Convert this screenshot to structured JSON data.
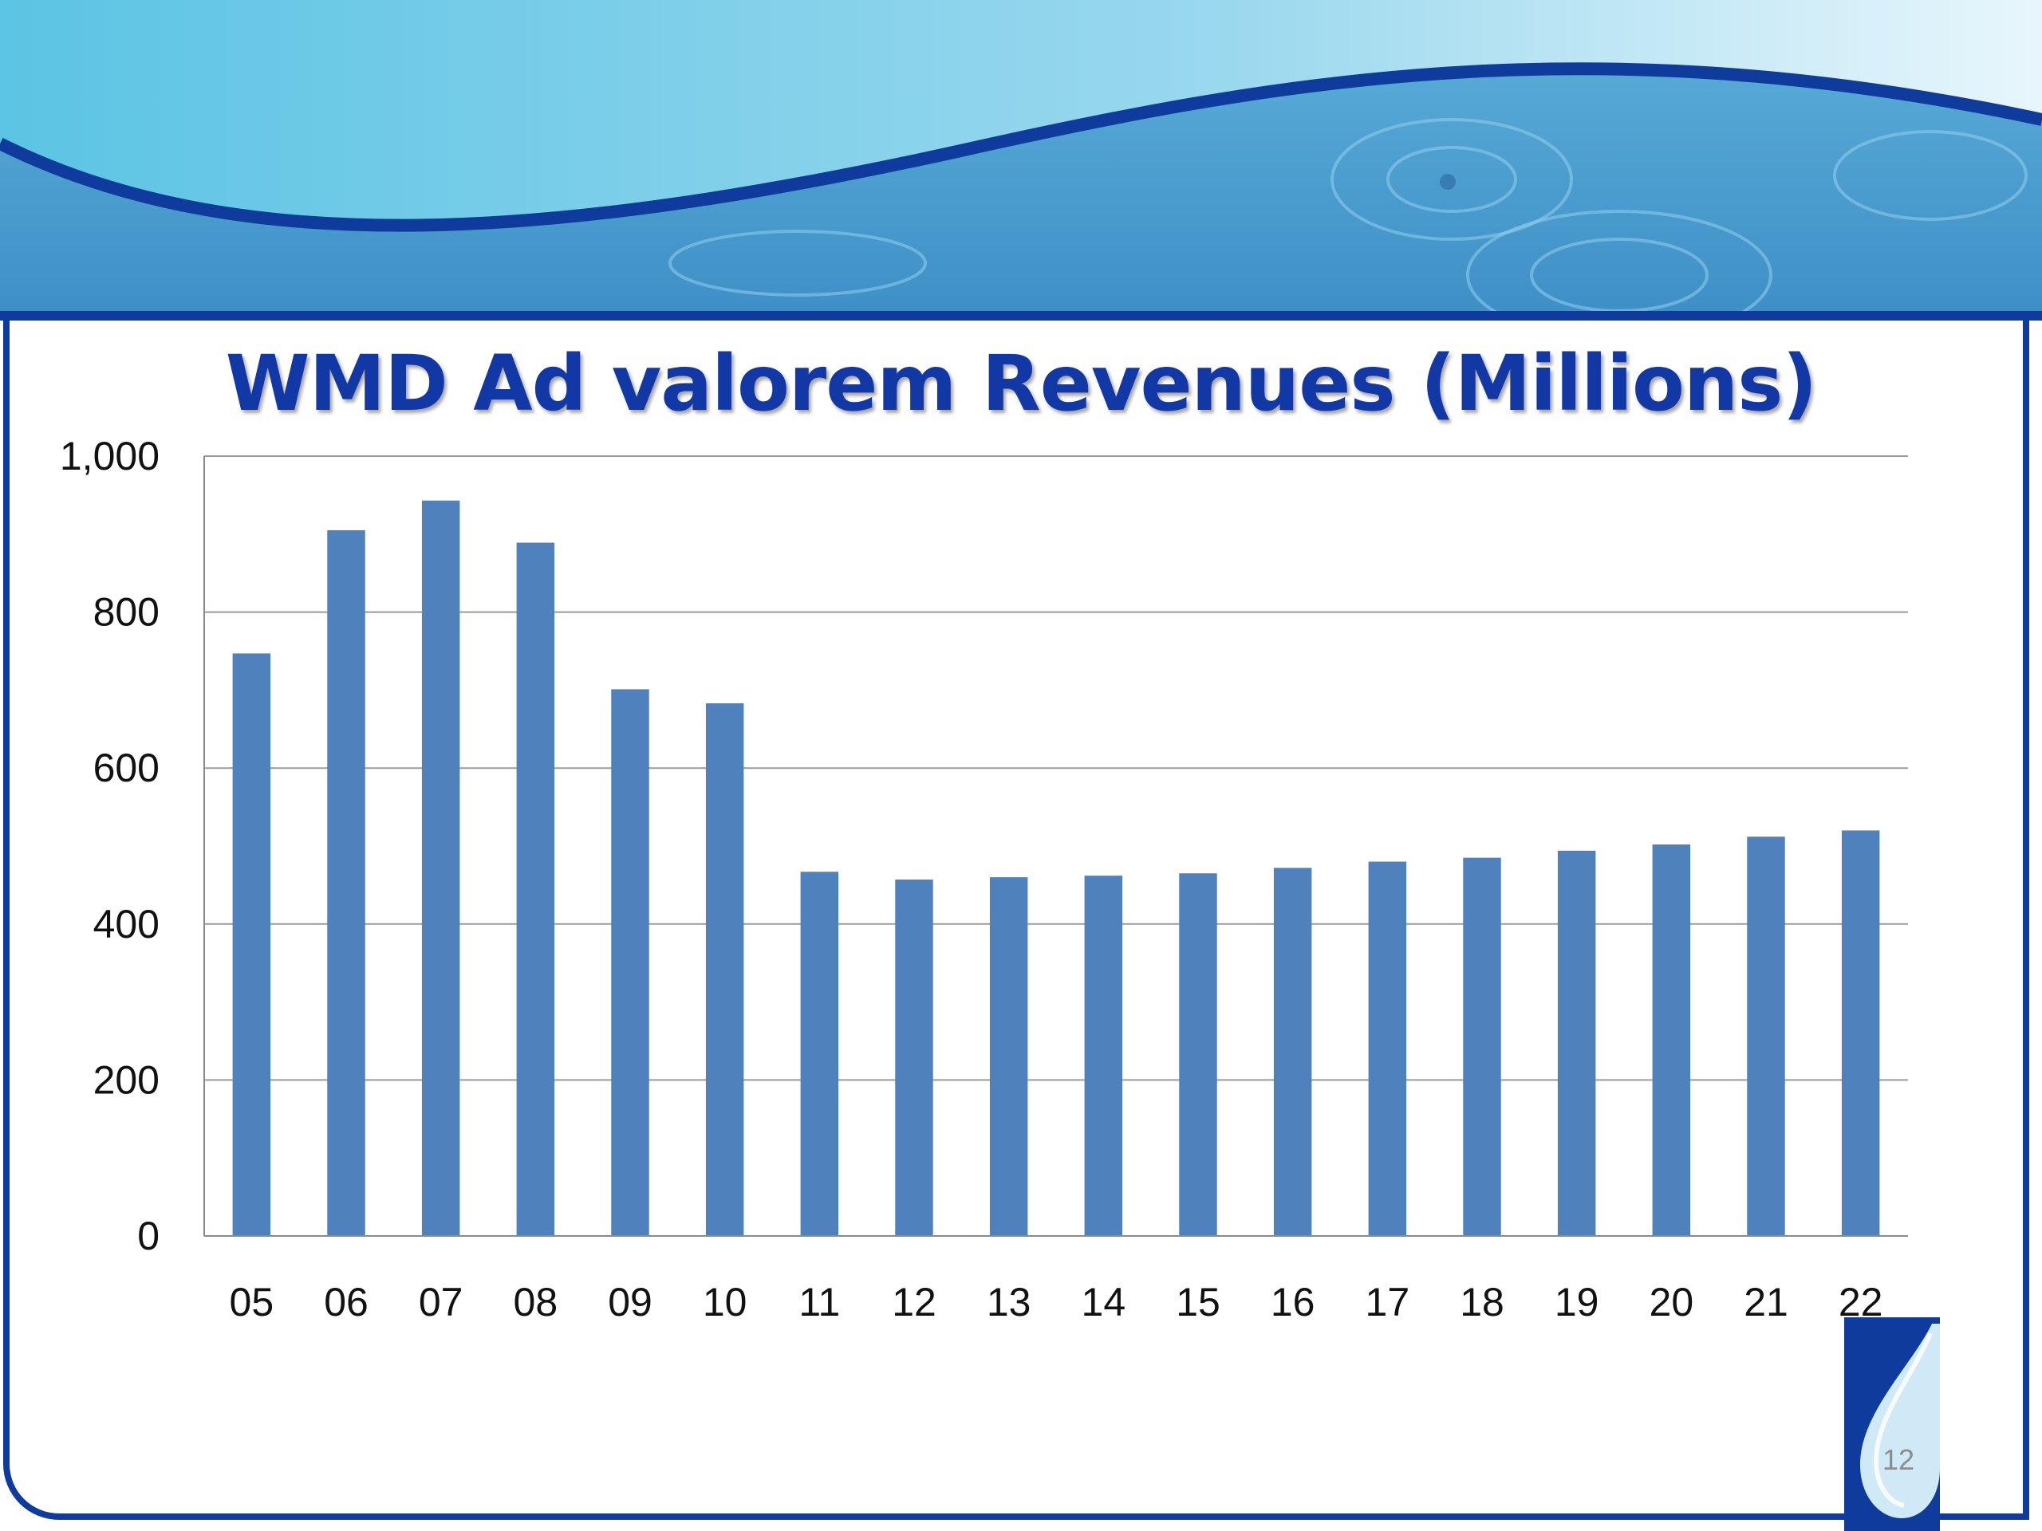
{
  "slide": {
    "page_number": "12",
    "colors": {
      "accent": "#1238a6",
      "frame": "#0f3c9c",
      "bar": "#4f81bd",
      "water": "#5bb6dc"
    }
  },
  "chart_data": {
    "type": "bar",
    "title": "WMD Ad valorem Revenues (Millions)",
    "xlabel": "",
    "ylabel": "",
    "categories": [
      "05",
      "06",
      "07",
      "08",
      "09",
      "10",
      "11",
      "12",
      "13",
      "14",
      "15",
      "16",
      "17",
      "18",
      "19",
      "20",
      "21",
      "22"
    ],
    "values": [
      747,
      905,
      943,
      889,
      701,
      683,
      467,
      457,
      460,
      462,
      465,
      472,
      480,
      485,
      494,
      502,
      512,
      520
    ],
    "ylim": [
      0,
      1000
    ],
    "yticks": [
      0,
      200,
      400,
      600,
      800,
      1000
    ],
    "ytick_labels": [
      "0",
      "200",
      "400",
      "600",
      "800",
      "1,000"
    ],
    "grid": true,
    "legend": "none"
  }
}
